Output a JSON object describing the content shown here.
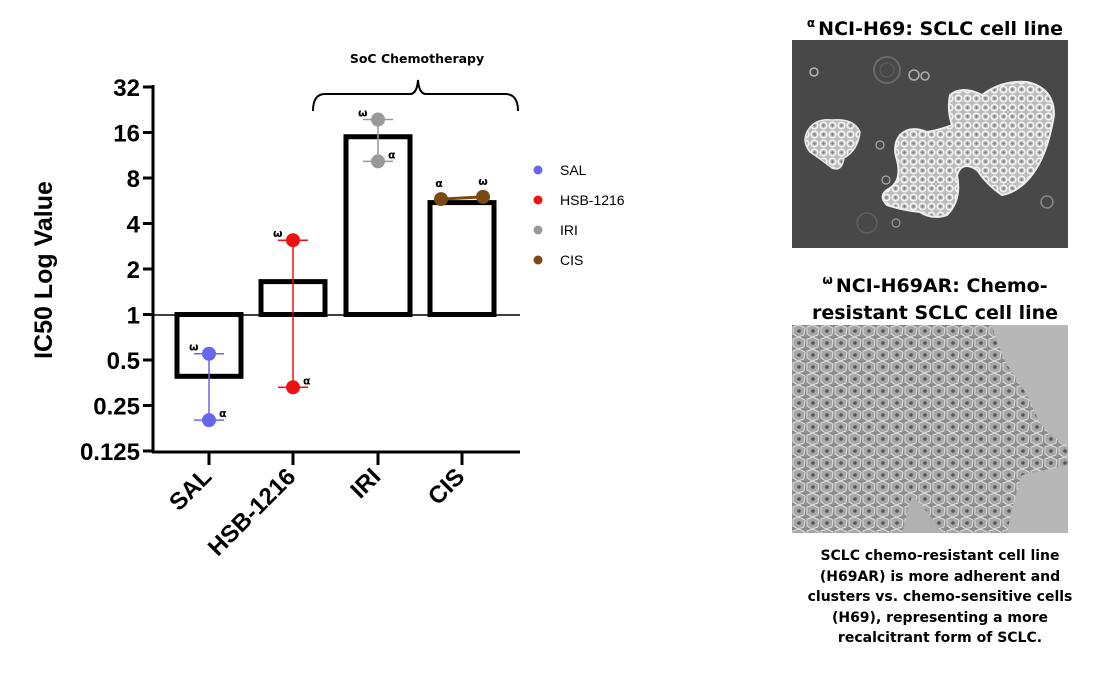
{
  "chart_data": {
    "type": "bar",
    "ylabel": "IC50 Log Value",
    "yscale": "log2",
    "ylim": [
      0.125,
      32
    ],
    "baseline": 1,
    "yticks": [
      "0.125",
      "0.25",
      "0.5",
      "1",
      "2",
      "4",
      "8",
      "16",
      "32"
    ],
    "ytick_values": [
      0.125,
      0.25,
      0.5,
      1,
      2,
      4,
      8,
      16,
      32
    ],
    "categories": [
      "SAL",
      "HSB-1216",
      "IRI",
      "CIS"
    ],
    "values": [
      0.39,
      1.65,
      15.0,
      5.5
    ],
    "points": [
      {
        "category": "SAL",
        "alpha": 0.2,
        "omega": 0.55
      },
      {
        "category": "HSB-1216",
        "alpha": 0.33,
        "omega": 3.1
      },
      {
        "category": "IRI",
        "alpha": 10.3,
        "omega": 19.5
      },
      {
        "category": "CIS",
        "alpha": 5.8,
        "omega": 6.0
      }
    ],
    "marker_alpha": "α",
    "marker_omega": "ω",
    "legend": [
      {
        "name": "SAL",
        "color": "#6666ee"
      },
      {
        "name": "HSB-1216",
        "color": "#ee1111"
      },
      {
        "name": "IRI",
        "color": "#999999"
      },
      {
        "name": "CIS",
        "color": "#7a4a14"
      }
    ],
    "legend_position": "right",
    "bracket_label": "SoC Chemotherapy",
    "bracket_spans": [
      "IRI",
      "CIS"
    ],
    "grid": false
  },
  "panels": {
    "h69_title_mark": "α",
    "h69_title": "NCI-H69: SCLC cell line",
    "h69ar_title_mark": "ω",
    "h69ar_title_line1": "NCI-H69AR: Chemo-",
    "h69ar_title_line2": "resistant SCLC cell line",
    "caption_lines": [
      "SCLC chemo-resistant cell line",
      "(H69AR) is more adherent and",
      "clusters vs. chemo-sensitive cells",
      "(H69), representing a more",
      "recalcitrant form of SCLC."
    ]
  }
}
